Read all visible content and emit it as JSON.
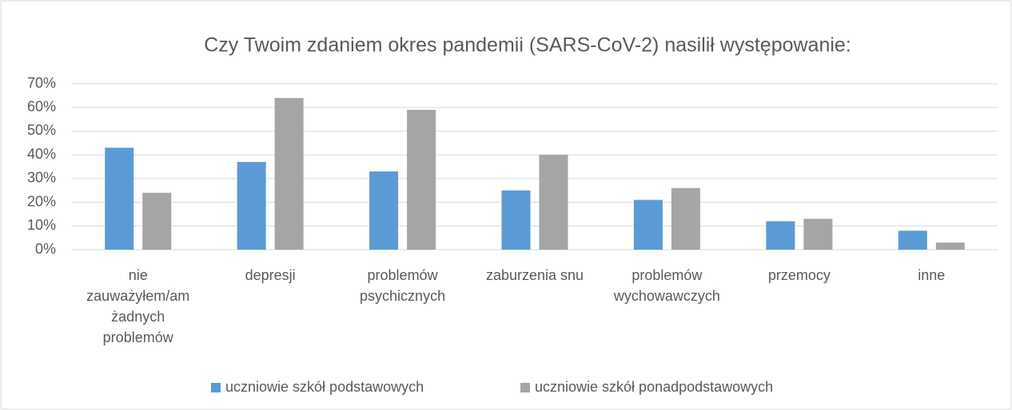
{
  "chart_data": {
    "type": "bar",
    "title": "Czy Twoim zdaniem okres pandemii (SARS-CoV-2) nasilił występowanie:",
    "categories": [
      "nie zauważyłem/am żadnych problemów",
      "depresji",
      "problemów psychicznych",
      "zaburzenia snu",
      "problemów wychowawczych",
      "przemocy",
      "inne"
    ],
    "series": [
      {
        "name": "uczniowie szkół podstawowych",
        "color": "#5b9bd5",
        "values": [
          43,
          37,
          33,
          25,
          21,
          12,
          8
        ]
      },
      {
        "name": "uczniowie szkół ponadpodstawowych",
        "color": "#a5a5a5",
        "values": [
          24,
          64,
          59,
          40,
          26,
          13,
          3
        ]
      }
    ],
    "ylim": [
      0,
      70
    ],
    "yticks": [
      {
        "value": 0,
        "label": "0%"
      },
      {
        "value": 10,
        "label": "10%"
      },
      {
        "value": 20,
        "label": "20%"
      },
      {
        "value": 30,
        "label": "30%"
      },
      {
        "value": 40,
        "label": "40%"
      },
      {
        "value": 50,
        "label": "50%"
      },
      {
        "value": 60,
        "label": "60%"
      },
      {
        "value": 70,
        "label": "70%"
      }
    ],
    "grid": true,
    "legend": "bottom"
  }
}
